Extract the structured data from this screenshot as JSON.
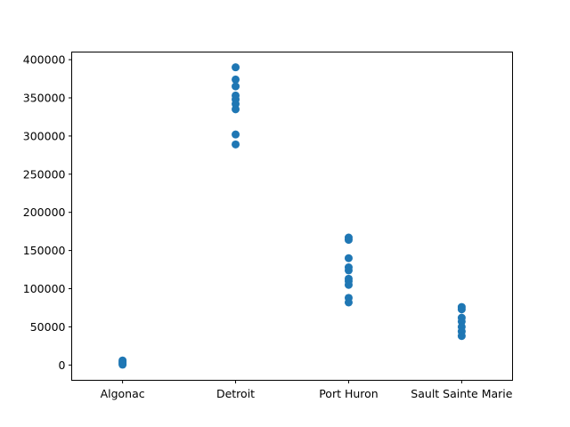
{
  "chart_data": {
    "type": "scatter",
    "title": "",
    "xlabel": "",
    "ylabel": "",
    "categories": [
      "Algonac",
      "Detroit",
      "Port Huron",
      "Sault Sainte Marie"
    ],
    "y_ticks": [
      0,
      50000,
      100000,
      150000,
      200000,
      250000,
      300000,
      350000,
      400000
    ],
    "y_tick_labels": [
      "0",
      "50000",
      "100000",
      "150000",
      "200000",
      "250000",
      "300000",
      "350000",
      "400000"
    ],
    "ylim": [
      -20000,
      410000
    ],
    "grid": false,
    "series": [
      {
        "color": "#1f77b4",
        "points": [
          {
            "x": "Algonac",
            "y": 6000
          },
          {
            "x": "Algonac",
            "y": 4500
          },
          {
            "x": "Algonac",
            "y": 3000
          },
          {
            "x": "Algonac",
            "y": 1500
          },
          {
            "x": "Algonac",
            "y": 500
          },
          {
            "x": "Detroit",
            "y": 390000
          },
          {
            "x": "Detroit",
            "y": 374000
          },
          {
            "x": "Detroit",
            "y": 365000
          },
          {
            "x": "Detroit",
            "y": 353000
          },
          {
            "x": "Detroit",
            "y": 348000
          },
          {
            "x": "Detroit",
            "y": 342000
          },
          {
            "x": "Detroit",
            "y": 335000
          },
          {
            "x": "Detroit",
            "y": 302000
          },
          {
            "x": "Detroit",
            "y": 289000
          },
          {
            "x": "Port Huron",
            "y": 167000
          },
          {
            "x": "Port Huron",
            "y": 164000
          },
          {
            "x": "Port Huron",
            "y": 140000
          },
          {
            "x": "Port Huron",
            "y": 128000
          },
          {
            "x": "Port Huron",
            "y": 124000
          },
          {
            "x": "Port Huron",
            "y": 113000
          },
          {
            "x": "Port Huron",
            "y": 110000
          },
          {
            "x": "Port Huron",
            "y": 105000
          },
          {
            "x": "Port Huron",
            "y": 88000
          },
          {
            "x": "Port Huron",
            "y": 82000
          },
          {
            "x": "Sault Sainte Marie",
            "y": 76000
          },
          {
            "x": "Sault Sainte Marie",
            "y": 73000
          },
          {
            "x": "Sault Sainte Marie",
            "y": 62000
          },
          {
            "x": "Sault Sainte Marie",
            "y": 57000
          },
          {
            "x": "Sault Sainte Marie",
            "y": 50000
          },
          {
            "x": "Sault Sainte Marie",
            "y": 44000
          },
          {
            "x": "Sault Sainte Marie",
            "y": 38000
          }
        ]
      }
    ]
  }
}
